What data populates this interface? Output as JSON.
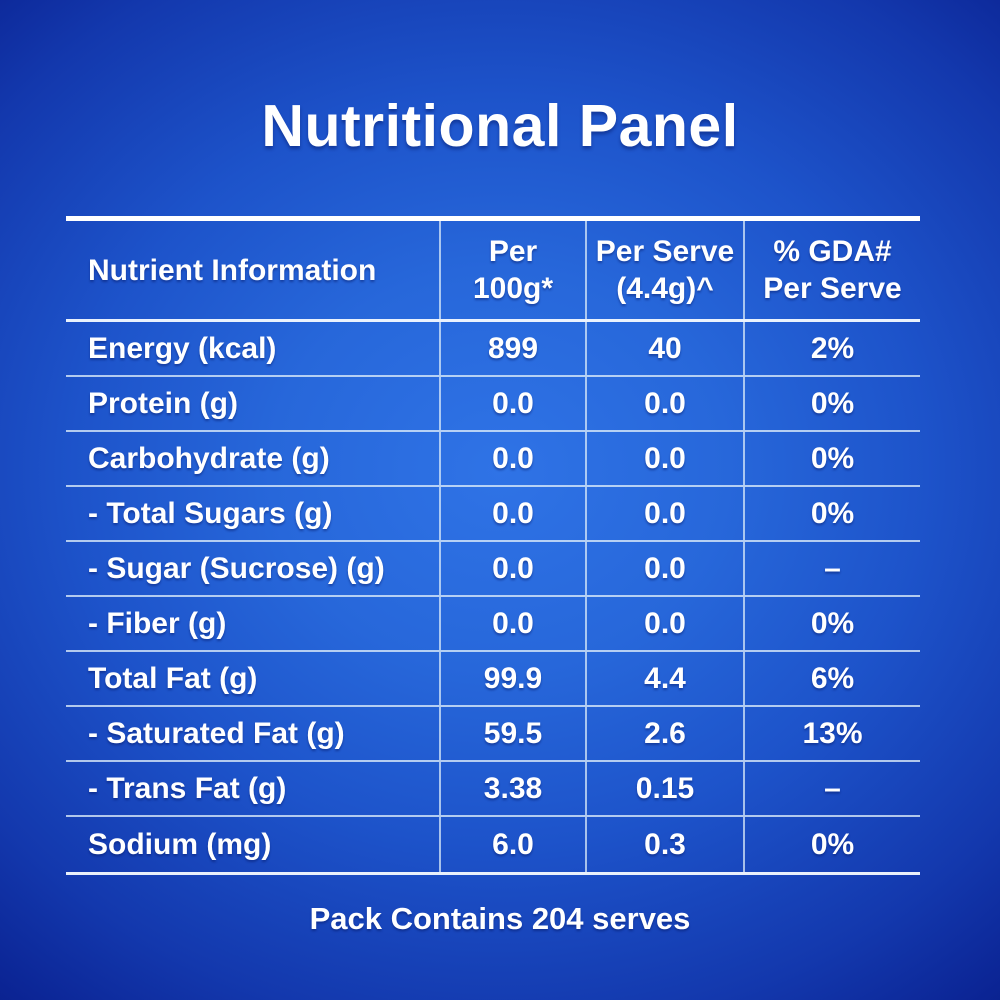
{
  "title": "Nutritional Panel",
  "table": {
    "headers": [
      "Nutrient Information",
      "Per\n100g*",
      "Per Serve\n(4.4g)^",
      "% GDA#\nPer Serve"
    ],
    "rows": [
      {
        "label": "Energy (kcal)",
        "per_100g": "899",
        "per_serve": "40",
        "gda_per_serve": "2%"
      },
      {
        "label": "Protein (g)",
        "per_100g": "0.0",
        "per_serve": "0.0",
        "gda_per_serve": "0%"
      },
      {
        "label": "Carbohydrate (g)",
        "per_100g": "0.0",
        "per_serve": "0.0",
        "gda_per_serve": "0%"
      },
      {
        "label": "- Total Sugars (g)",
        "per_100g": "0.0",
        "per_serve": "0.0",
        "gda_per_serve": "0%"
      },
      {
        "label": "- Sugar (Sucrose) (g)",
        "per_100g": "0.0",
        "per_serve": "0.0",
        "gda_per_serve": "–"
      },
      {
        "label": "- Fiber (g)",
        "per_100g": "0.0",
        "per_serve": "0.0",
        "gda_per_serve": "0%"
      },
      {
        "label": "Total Fat (g)",
        "per_100g": "99.9",
        "per_serve": "4.4",
        "gda_per_serve": "6%"
      },
      {
        "label": "- Saturated Fat (g)",
        "per_100g": "59.5",
        "per_serve": "2.6",
        "gda_per_serve": "13%"
      },
      {
        "label": "- Trans Fat (g)",
        "per_100g": "3.38",
        "per_serve": "0.15",
        "gda_per_serve": "–"
      },
      {
        "label": "Sodium (mg)",
        "per_100g": "6.0",
        "per_serve": "0.3",
        "gda_per_serve": "0%"
      }
    ]
  },
  "footer": "Pack Contains 204 serves",
  "colors": {
    "background_center": "#2f73e6",
    "background_edge": "#091f88",
    "grid_line": "#e4f0fa",
    "text": "#ffffff"
  }
}
